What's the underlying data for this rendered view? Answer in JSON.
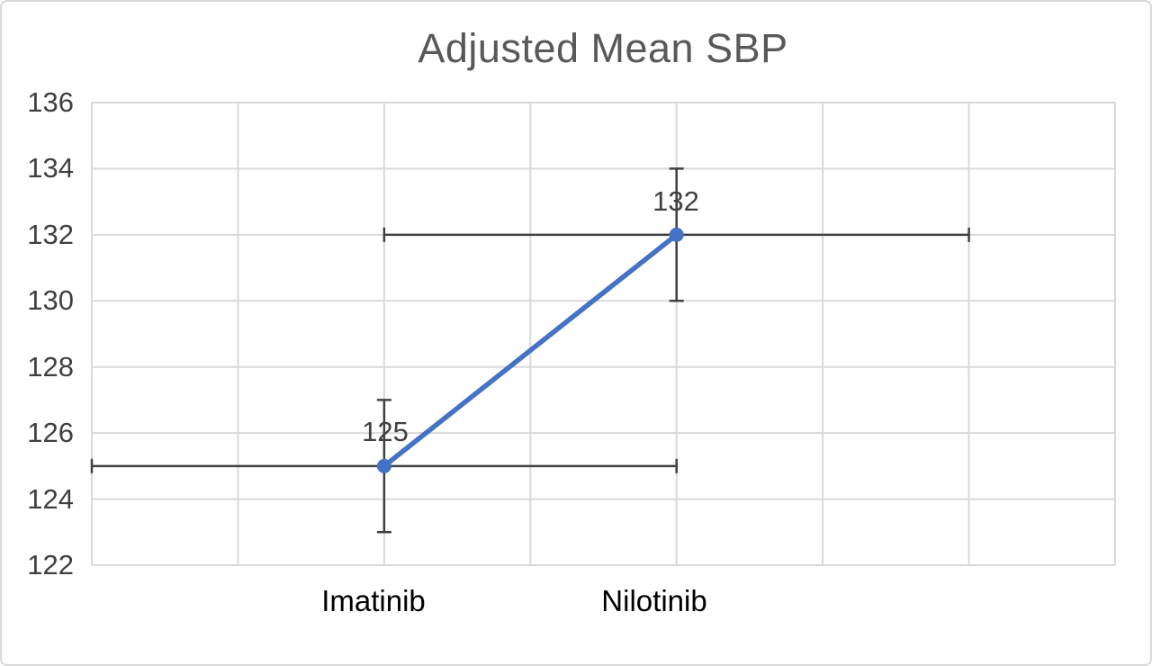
{
  "chart_data": {
    "type": "line",
    "title": "Adjusted Mean SBP",
    "categories": [
      "Imatinib",
      "Nilotinib"
    ],
    "series": [
      {
        "name": "Adjusted Mean SBP",
        "points": [
          {
            "category": "Imatinib",
            "x": 1,
            "y": 125,
            "label": "125",
            "y_error": 2,
            "x_error": 1
          },
          {
            "category": "Nilotinib",
            "x": 2,
            "y": 132,
            "label": "132",
            "y_error": 2,
            "x_error": 1
          }
        ]
      }
    ],
    "xlim": [
      0,
      3.5
    ],
    "ylim": [
      122,
      136
    ],
    "x_major_unit": 0.5,
    "y_major_unit": 2,
    "yticks": [
      "136",
      "134",
      "132",
      "130",
      "128",
      "126",
      "124",
      "122"
    ],
    "grid": true,
    "legend": "none",
    "error_bars": "both x and y, with end caps",
    "colors": {
      "line": "#4472c4",
      "marker": "#4472c4",
      "error_bar": "#404040",
      "gridline": "#d9d9d9",
      "plot_border": "#d9d9d9",
      "chart_border": "#d9d9d9",
      "title_text": "#595959",
      "tick_text": "#404040",
      "data_label_text": "#404040",
      "category_text": "#000000",
      "background": "#ffffff"
    }
  }
}
